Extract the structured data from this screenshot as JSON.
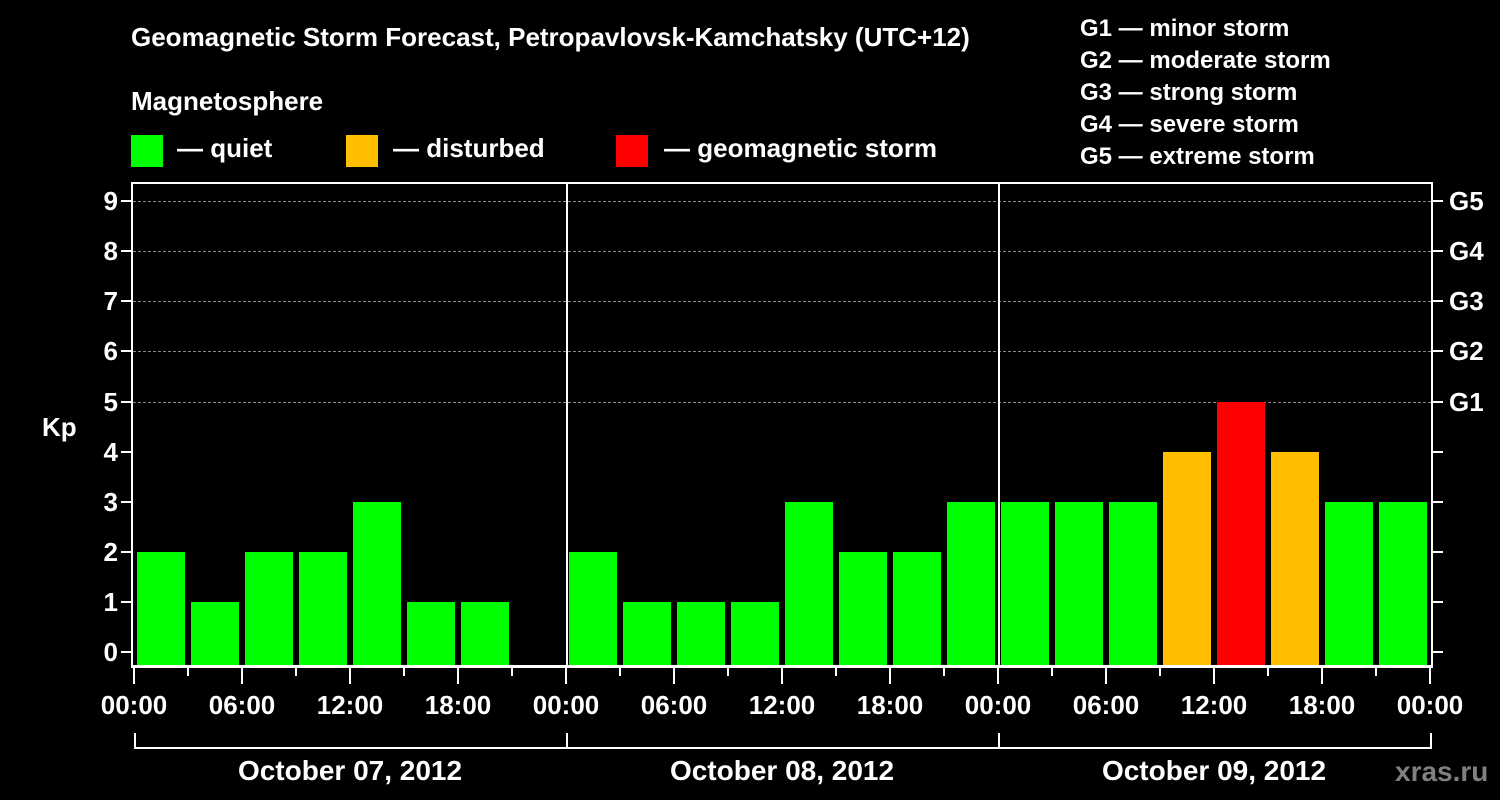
{
  "title": "Geomagnetic Storm Forecast, Petropavlovsk-Kamchatsky (UTC+12)",
  "legend": {
    "heading": "Magnetosphere",
    "items": [
      {
        "label": "— quiet",
        "color": "#00ff00"
      },
      {
        "label": "— disturbed",
        "color": "#ffbf00"
      },
      {
        "label": "— geomagnetic storm",
        "color": "#ff0000"
      }
    ]
  },
  "storm_scale": [
    "G1 — minor storm",
    "G2 — moderate storm",
    "G3 — strong storm",
    "G4 — severe storm",
    "G5 — extreme storm"
  ],
  "y_axis": {
    "label": "Kp",
    "ticks": [
      "0",
      "1",
      "2",
      "3",
      "4",
      "5",
      "6",
      "7",
      "8",
      "9"
    ]
  },
  "right_axis": {
    "ticks": [
      "G1",
      "G2",
      "G3",
      "G4",
      "G5"
    ]
  },
  "x_axis": {
    "ticks": [
      "00:00",
      "06:00",
      "12:00",
      "18:00",
      "00:00",
      "06:00",
      "12:00",
      "18:00",
      "00:00",
      "06:00",
      "12:00",
      "18:00",
      "00:00"
    ]
  },
  "days": [
    "October 07, 2012",
    "October 08, 2012",
    "October 09, 2012"
  ],
  "watermark": "xras.ru",
  "chart_data": {
    "type": "bar",
    "title": "Geomagnetic Storm Forecast, Petropavlovsk-Kamchatsky (UTC+12)",
    "xlabel": "",
    "ylabel": "Kp",
    "ylim": [
      0,
      9
    ],
    "grid": true,
    "legend_position": "top",
    "categories": [
      "Oct 07 00:00",
      "Oct 07 03:00",
      "Oct 07 06:00",
      "Oct 07 09:00",
      "Oct 07 12:00",
      "Oct 07 15:00",
      "Oct 07 18:00",
      "Oct 07 21:00",
      "Oct 08 00:00",
      "Oct 08 03:00",
      "Oct 08 06:00",
      "Oct 08 09:00",
      "Oct 08 12:00",
      "Oct 08 15:00",
      "Oct 08 18:00",
      "Oct 08 21:00",
      "Oct 09 00:00",
      "Oct 09 03:00",
      "Oct 09 06:00",
      "Oct 09 09:00",
      "Oct 09 12:00",
      "Oct 09 15:00",
      "Oct 09 18:00",
      "Oct 09 21:00"
    ],
    "values": [
      2,
      1,
      2,
      2,
      3,
      1,
      1,
      null,
      2,
      1,
      1,
      1,
      3,
      2,
      2,
      3,
      3,
      3,
      3,
      4,
      5,
      4,
      3,
      3
    ],
    "levels": {
      "quiet": "Kp <= 3",
      "disturbed": "Kp = 4",
      "geomagnetic storm": "Kp >= 5"
    },
    "right_axis_map": {
      "G1": 5,
      "G2": 6,
      "G3": 7,
      "G4": 8,
      "G5": 9
    }
  }
}
